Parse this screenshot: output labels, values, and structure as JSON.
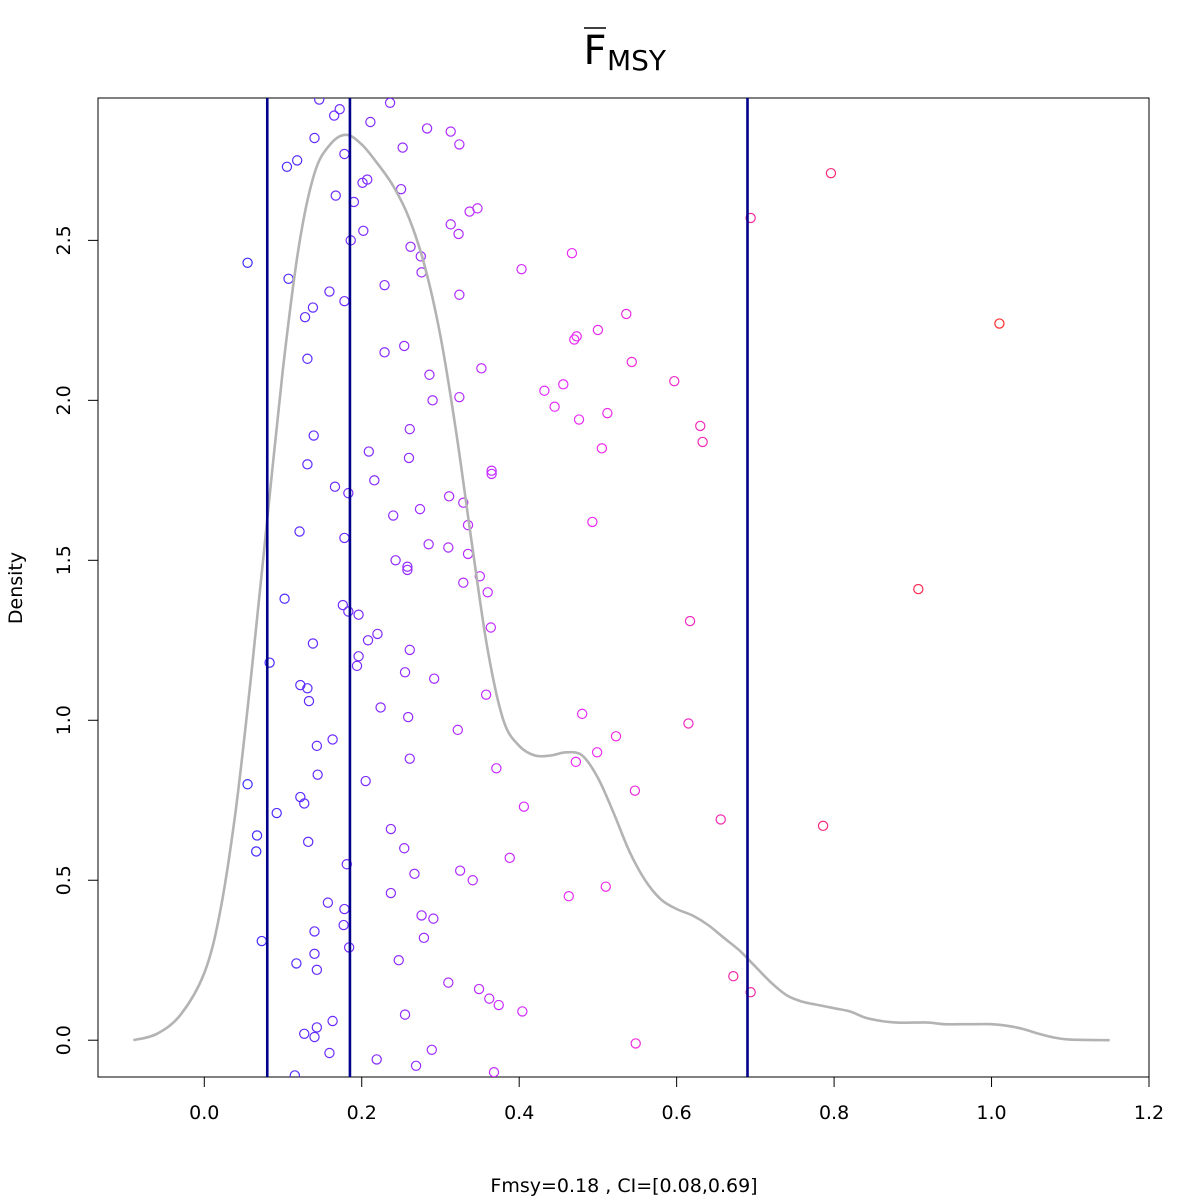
{
  "chart_data": {
    "type": "scatter",
    "title_main": "F",
    "title_sub": "MSY",
    "xlabel": "Fmsy=0.18 , CI=[0.08,0.69]",
    "ylabel": "Density",
    "xlim": [
      -0.135,
      1.2
    ],
    "ylim": [
      -0.115,
      2.945
    ],
    "x_ticks": [
      "0.0",
      "0.2",
      "0.4",
      "0.6",
      "0.8",
      "1.0",
      "1.2"
    ],
    "y_ticks": [
      "0.0",
      "0.5",
      "1.0",
      "1.5",
      "2.0",
      "2.5"
    ],
    "vlines": [
      0.08,
      0.185,
      0.69
    ],
    "vline_color": "#00008b",
    "density_color": "#b3b3b3",
    "point_color_low": "#3a2bff",
    "point_color_mid": "#e92bff",
    "point_color_high": "#ff2a2a",
    "density_curve": [
      [
        -0.09,
        0.0
      ],
      [
        -0.06,
        0.02
      ],
      [
        -0.03,
        0.08
      ],
      [
        0.0,
        0.21
      ],
      [
        0.02,
        0.4
      ],
      [
        0.04,
        0.72
      ],
      [
        0.06,
        1.15
      ],
      [
        0.08,
        1.63
      ],
      [
        0.1,
        2.1
      ],
      [
        0.12,
        2.48
      ],
      [
        0.14,
        2.71
      ],
      [
        0.16,
        2.8
      ],
      [
        0.18,
        2.83
      ],
      [
        0.2,
        2.8
      ],
      [
        0.22,
        2.74
      ],
      [
        0.24,
        2.67
      ],
      [
        0.26,
        2.57
      ],
      [
        0.28,
        2.42
      ],
      [
        0.3,
        2.2
      ],
      [
        0.32,
        1.9
      ],
      [
        0.34,
        1.55
      ],
      [
        0.36,
        1.22
      ],
      [
        0.38,
        1.0
      ],
      [
        0.4,
        0.92
      ],
      [
        0.42,
        0.89
      ],
      [
        0.44,
        0.89
      ],
      [
        0.46,
        0.9
      ],
      [
        0.48,
        0.89
      ],
      [
        0.5,
        0.82
      ],
      [
        0.52,
        0.71
      ],
      [
        0.54,
        0.59
      ],
      [
        0.56,
        0.5
      ],
      [
        0.58,
        0.44
      ],
      [
        0.6,
        0.41
      ],
      [
        0.62,
        0.39
      ],
      [
        0.64,
        0.36
      ],
      [
        0.66,
        0.32
      ],
      [
        0.68,
        0.28
      ],
      [
        0.7,
        0.23
      ],
      [
        0.72,
        0.18
      ],
      [
        0.74,
        0.14
      ],
      [
        0.76,
        0.12
      ],
      [
        0.78,
        0.11
      ],
      [
        0.8,
        0.1
      ],
      [
        0.82,
        0.09
      ],
      [
        0.84,
        0.07
      ],
      [
        0.86,
        0.06
      ],
      [
        0.88,
        0.055
      ],
      [
        0.9,
        0.055
      ],
      [
        0.92,
        0.055
      ],
      [
        0.94,
        0.05
      ],
      [
        0.96,
        0.05
      ],
      [
        0.98,
        0.05
      ],
      [
        1.0,
        0.05
      ],
      [
        1.02,
        0.045
      ],
      [
        1.04,
        0.035
      ],
      [
        1.06,
        0.02
      ],
      [
        1.08,
        0.008
      ],
      [
        1.1,
        0.002
      ],
      [
        1.15,
        0.0
      ]
    ],
    "points": [
      [
        0.146,
        2.94
      ],
      [
        0.172,
        2.91
      ],
      [
        0.165,
        2.89
      ],
      [
        0.236,
        2.93
      ],
      [
        0.211,
        2.87
      ],
      [
        0.283,
        2.85
      ],
      [
        0.313,
        2.84
      ],
      [
        0.324,
        2.8
      ],
      [
        0.14,
        2.82
      ],
      [
        0.252,
        2.79
      ],
      [
        0.178,
        2.77
      ],
      [
        0.118,
        2.75
      ],
      [
        0.105,
        2.73
      ],
      [
        0.796,
        2.71
      ],
      [
        0.207,
        2.69
      ],
      [
        0.201,
        2.68
      ],
      [
        0.25,
        2.66
      ],
      [
        0.167,
        2.64
      ],
      [
        0.19,
        2.62
      ],
      [
        0.347,
        2.6
      ],
      [
        0.337,
        2.59
      ],
      [
        0.694,
        2.57
      ],
      [
        0.313,
        2.55
      ],
      [
        0.202,
        2.53
      ],
      [
        0.323,
        2.52
      ],
      [
        0.186,
        2.5
      ],
      [
        0.262,
        2.48
      ],
      [
        0.467,
        2.46
      ],
      [
        0.275,
        2.45
      ],
      [
        0.055,
        2.43
      ],
      [
        0.403,
        2.41
      ],
      [
        0.276,
        2.4
      ],
      [
        0.107,
        2.38
      ],
      [
        0.229,
        2.36
      ],
      [
        0.159,
        2.34
      ],
      [
        0.324,
        2.33
      ],
      [
        0.178,
        2.31
      ],
      [
        0.138,
        2.29
      ],
      [
        0.536,
        2.27
      ],
      [
        0.128,
        2.26
      ],
      [
        1.01,
        2.24
      ],
      [
        0.5,
        2.22
      ],
      [
        0.473,
        2.2
      ],
      [
        0.47,
        2.19
      ],
      [
        0.254,
        2.17
      ],
      [
        0.229,
        2.15
      ],
      [
        0.131,
        2.13
      ],
      [
        0.543,
        2.12
      ],
      [
        0.352,
        2.1
      ],
      [
        0.286,
        2.08
      ],
      [
        0.597,
        2.06
      ],
      [
        0.456,
        2.05
      ],
      [
        0.432,
        2.03
      ],
      [
        0.324,
        2.01
      ],
      [
        0.29,
        2.0
      ],
      [
        0.445,
        1.98
      ],
      [
        0.512,
        1.96
      ],
      [
        0.476,
        1.94
      ],
      [
        0.63,
        1.92
      ],
      [
        0.261,
        1.91
      ],
      [
        0.139,
        1.89
      ],
      [
        0.633,
        1.87
      ],
      [
        0.505,
        1.85
      ],
      [
        0.209,
        1.84
      ],
      [
        0.26,
        1.82
      ],
      [
        0.131,
        1.8
      ],
      [
        0.365,
        1.78
      ],
      [
        0.365,
        1.77
      ],
      [
        0.216,
        1.75
      ],
      [
        0.166,
        1.73
      ],
      [
        0.183,
        1.71
      ],
      [
        0.311,
        1.7
      ],
      [
        0.329,
        1.68
      ],
      [
        0.274,
        1.66
      ],
      [
        0.24,
        1.64
      ],
      [
        0.493,
        1.62
      ],
      [
        0.335,
        1.61
      ],
      [
        0.121,
        1.59
      ],
      [
        0.178,
        1.57
      ],
      [
        0.285,
        1.55
      ],
      [
        0.31,
        1.54
      ],
      [
        0.335,
        1.52
      ],
      [
        0.243,
        1.5
      ],
      [
        0.258,
        1.48
      ],
      [
        0.258,
        1.47
      ],
      [
        0.35,
        1.45
      ],
      [
        0.329,
        1.43
      ],
      [
        0.907,
        1.41
      ],
      [
        0.36,
        1.4
      ],
      [
        0.102,
        1.38
      ],
      [
        0.176,
        1.36
      ],
      [
        0.183,
        1.34
      ],
      [
        0.196,
        1.33
      ],
      [
        0.617,
        1.31
      ],
      [
        0.364,
        1.29
      ],
      [
        0.22,
        1.27
      ],
      [
        0.208,
        1.25
      ],
      [
        0.138,
        1.24
      ],
      [
        0.261,
        1.22
      ],
      [
        0.196,
        1.2
      ],
      [
        0.083,
        1.18
      ],
      [
        0.194,
        1.17
      ],
      [
        0.255,
        1.15
      ],
      [
        0.292,
        1.13
      ],
      [
        0.122,
        1.11
      ],
      [
        0.131,
        1.1
      ],
      [
        0.358,
        1.08
      ],
      [
        0.133,
        1.06
      ],
      [
        0.224,
        1.04
      ],
      [
        0.48,
        1.02
      ],
      [
        0.259,
        1.01
      ],
      [
        0.615,
        0.99
      ],
      [
        0.322,
        0.97
      ],
      [
        0.523,
        0.95
      ],
      [
        0.163,
        0.94
      ],
      [
        0.143,
        0.92
      ],
      [
        0.499,
        0.9
      ],
      [
        0.261,
        0.88
      ],
      [
        0.472,
        0.87
      ],
      [
        0.371,
        0.85
      ],
      [
        0.144,
        0.83
      ],
      [
        0.205,
        0.81
      ],
      [
        0.055,
        0.8
      ],
      [
        0.547,
        0.78
      ],
      [
        0.122,
        0.76
      ],
      [
        0.127,
        0.74
      ],
      [
        0.406,
        0.73
      ],
      [
        0.092,
        0.71
      ],
      [
        0.656,
        0.69
      ],
      [
        0.786,
        0.67
      ],
      [
        0.237,
        0.66
      ],
      [
        0.067,
        0.64
      ],
      [
        0.132,
        0.62
      ],
      [
        0.254,
        0.6
      ],
      [
        0.066,
        0.59
      ],
      [
        0.388,
        0.57
      ],
      [
        0.181,
        0.55
      ],
      [
        0.325,
        0.53
      ],
      [
        0.267,
        0.52
      ],
      [
        0.341,
        0.5
      ],
      [
        0.51,
        0.48
      ],
      [
        0.237,
        0.46
      ],
      [
        0.463,
        0.45
      ],
      [
        0.157,
        0.43
      ],
      [
        0.178,
        0.41
      ],
      [
        0.276,
        0.39
      ],
      [
        0.291,
        0.38
      ],
      [
        0.177,
        0.36
      ],
      [
        0.14,
        0.34
      ],
      [
        0.279,
        0.32
      ],
      [
        0.073,
        0.31
      ],
      [
        0.184,
        0.29
      ],
      [
        0.14,
        0.27
      ],
      [
        0.247,
        0.25
      ],
      [
        0.117,
        0.24
      ],
      [
        0.143,
        0.22
      ],
      [
        0.672,
        0.2
      ],
      [
        0.31,
        0.18
      ],
      [
        0.349,
        0.16
      ],
      [
        0.694,
        0.15
      ],
      [
        0.362,
        0.13
      ],
      [
        0.374,
        0.11
      ],
      [
        0.404,
        0.09
      ],
      [
        0.255,
        0.08
      ],
      [
        0.163,
        0.06
      ],
      [
        0.143,
        0.04
      ],
      [
        0.127,
        0.02
      ],
      [
        0.14,
        0.01
      ],
      [
        0.548,
        -0.01
      ],
      [
        0.289,
        -0.03
      ],
      [
        0.159,
        -0.04
      ],
      [
        0.219,
        -0.06
      ],
      [
        0.269,
        -0.08
      ],
      [
        0.368,
        -0.1
      ],
      [
        0.115,
        -0.11
      ]
    ]
  }
}
